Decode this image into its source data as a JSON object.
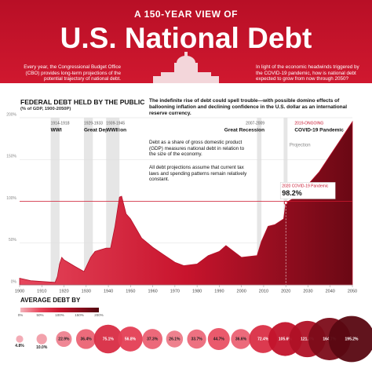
{
  "header": {
    "kicker": "A 150-YEAR VIEW OF",
    "title": "U.S. National Debt",
    "left_text": "Every year, the Congressional Budget Office (CBO) provides long-term projections of the potential trajectory of national debt.",
    "right_text": "In light of the economic headwinds triggered by the COVID-19 pandemic, how is national debt expected to grow from now through 2050?"
  },
  "chart_data": [
    {
      "type": "area",
      "title": "FEDERAL DEBT HELD BY THE PUBLIC",
      "subtitle": "(% of GDP, 1900-2050P)",
      "annotations": [
        "The indefinite rise of debt could spell trouble—with possible domino effects of ballooning inflation and declining confidence in the U.S. dollar as an international reserve currency.",
        "Debt as a share of gross domestic product (GDP) measures national debt in relation to the size of the economy.",
        "All debt projections assume that current tax laws and spending patterns remain relatively constant."
      ],
      "x": [
        1900,
        1905,
        1910,
        1916,
        1917,
        1918,
        1919,
        1920,
        1925,
        1929,
        1932,
        1934,
        1939,
        1941,
        1943,
        1945,
        1946,
        1948,
        1950,
        1955,
        1960,
        1965,
        1970,
        1974,
        1980,
        1985,
        1990,
        1993,
        2000,
        2007,
        2009,
        2012,
        2015,
        2019,
        2020,
        2025,
        2030,
        2035,
        2040,
        2045,
        2050
      ],
      "values": [
        8,
        5,
        4,
        3,
        10,
        25,
        33,
        30,
        22,
        16,
        33,
        40,
        44,
        44,
        70,
        105,
        106,
        85,
        79,
        56,
        45,
        36,
        27,
        23,
        25,
        35,
        40,
        47,
        33,
        35,
        52,
        70,
        72,
        79,
        98.2,
        106,
        120,
        135,
        155,
        175,
        195.2
      ],
      "colors": [
        "#e6475c",
        "#c8142d",
        "#6a0814"
      ],
      "xlim": [
        1900,
        2050
      ],
      "xticks": [
        1900,
        1910,
        1920,
        1930,
        1940,
        1950,
        1960,
        1970,
        1980,
        1990,
        2000,
        2010,
        2020,
        2030,
        2040,
        2050
      ],
      "ylim": [
        0,
        200
      ],
      "yticks": [
        {
          "value": 0,
          "label": "0%"
        },
        {
          "value": 50,
          "label": "50%"
        },
        {
          "value": 100,
          "label": "100%"
        },
        {
          "value": 150,
          "label": "150%"
        },
        {
          "value": 200,
          "label": "200%"
        }
      ],
      "reference_line": {
        "value": 100,
        "color": "#d0182f"
      },
      "events": [
        {
          "years": "1914-1918",
          "name": "WWI",
          "start": 1914,
          "end": 1918
        },
        {
          "years": "1929-1933",
          "name": "Great Depression",
          "start": 1929,
          "end": 1933
        },
        {
          "years": "1939-1945",
          "name": "WWII",
          "start": 1939,
          "end": 1945
        },
        {
          "years": "2007-2009",
          "name": "Great Recession",
          "start": 2007,
          "end": 2009
        },
        {
          "years": "2019-ONGOING",
          "name": "COVID-19 Pandemic",
          "start": 2019
        }
      ],
      "callout": {
        "label": "2020 COVID-19 Pandemic",
        "value_label": "98.2%",
        "x": 2020,
        "value": 98.2
      },
      "projection": {
        "label": "Projection",
        "start": 2020
      }
    },
    {
      "type": "bubble",
      "title": "AVERAGE DEBT BY",
      "legend_ticks": [
        {
          "value": 0,
          "label": "0%"
        },
        {
          "value": 50,
          "label": "50%"
        },
        {
          "value": 100,
          "label": "100%"
        },
        {
          "value": 150,
          "label": "150%"
        },
        {
          "value": 200,
          "label": "200%"
        }
      ],
      "colors": [
        "#f3b3bb",
        "#e8455a",
        "#c8142d",
        "#8e0e1d",
        "#520610"
      ],
      "values": [
        4.8,
        10.0,
        22.9,
        36.4,
        75.1,
        56.8,
        37.3,
        26.1,
        33.7,
        44.7,
        36.6,
        72.4,
        105.6,
        121.8,
        164.7,
        195.2
      ],
      "value_labels": [
        "4.8%",
        "10.0%",
        "22.9%",
        "36.4%",
        "75.1%",
        "56.8%",
        "37.3%",
        "26.1%",
        "33.7%",
        "44.7%",
        "36.6%",
        "72.4%",
        "105.6%",
        "121.8%",
        "164.7%",
        "195.2%"
      ]
    }
  ]
}
